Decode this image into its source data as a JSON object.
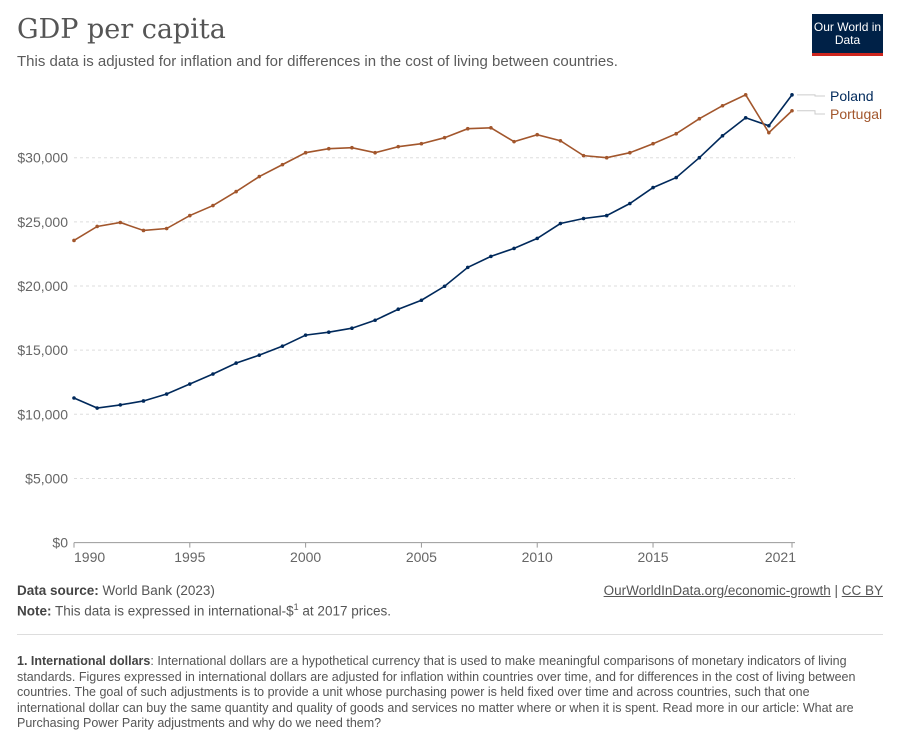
{
  "header": {
    "title": "GDP per capita",
    "subtitle": "This data is adjusted for inflation and for differences in the cost of living between countries.",
    "logo_text": "Our World in Data"
  },
  "chart_data": {
    "type": "line",
    "title": "GDP per capita",
    "x": [
      1990,
      1991,
      1992,
      1993,
      1994,
      1995,
      1996,
      1997,
      1998,
      1999,
      2000,
      2001,
      2002,
      2003,
      2004,
      2005,
      2006,
      2007,
      2008,
      2009,
      2010,
      2011,
      2012,
      2013,
      2014,
      2015,
      2016,
      2017,
      2018,
      2019,
      2020,
      2021
    ],
    "series": [
      {
        "name": "Poland",
        "color": "#00295b",
        "values": [
          11270,
          10490,
          10730,
          11040,
          11580,
          12360,
          13140,
          13990,
          14610,
          15310,
          16170,
          16400,
          16710,
          17330,
          18190,
          18890,
          19980,
          21450,
          22310,
          22930,
          23710,
          24870,
          25260,
          25490,
          26430,
          27670,
          28450,
          30000,
          31710,
          33110,
          32490,
          34900
        ]
      },
      {
        "name": "Portugal",
        "color": "#a2562c",
        "values": [
          23550,
          24640,
          24950,
          24330,
          24480,
          25490,
          26270,
          27360,
          28530,
          29460,
          30390,
          30700,
          30780,
          30390,
          30860,
          31090,
          31560,
          32260,
          32330,
          31250,
          31790,
          31320,
          30160,
          30000,
          30390,
          31090,
          31870,
          33040,
          34050,
          34900,
          31950,
          33660
        ]
      }
    ],
    "ylim": [
      0,
      35000
    ],
    "y_ticks": [
      {
        "v": 0,
        "label": "$0"
      },
      {
        "v": 5000,
        "label": "$5,000"
      },
      {
        "v": 10000,
        "label": "$10,000"
      },
      {
        "v": 15000,
        "label": "$15,000"
      },
      {
        "v": 20000,
        "label": "$20,000"
      },
      {
        "v": 25000,
        "label": "$25,000"
      },
      {
        "v": 30000,
        "label": "$30,000"
      }
    ],
    "x_ticks": [
      {
        "v": 1990,
        "label": "1990"
      },
      {
        "v": 1995,
        "label": "1995"
      },
      {
        "v": 2000,
        "label": "2000"
      },
      {
        "v": 2005,
        "label": "2005"
      },
      {
        "v": 2010,
        "label": "2010"
      },
      {
        "v": 2015,
        "label": "2015"
      },
      {
        "v": 2021,
        "label": "2021"
      }
    ],
    "grid": true,
    "legend": "right, inline labels"
  },
  "footer": {
    "source_label": "Data source:",
    "source": "World Bank (2023)",
    "note_label": "Note:",
    "note_pre": "This data is expressed in international-$",
    "note_sup": "1",
    "note_post": " at 2017 prices.",
    "link": "OurWorldInData.org/economic-growth",
    "sep": " | ",
    "license": "CC BY",
    "footnote_label": "1. International dollars",
    "footnote_text": ": International dollars are a hypothetical currency that is used to make meaningful comparisons of monetary indicators of living standards. Figures expressed in international dollars are adjusted for inflation within countries over time, and for differences in the cost of living between countries. The goal of such adjustments is to provide a unit whose purchasing power is held fixed over time and across countries, such that one international dollar can buy the same quantity and quality of goods and services no matter where or when it is spent. Read more in our article: What are Purchasing Power Parity adjustments and why do we need them?"
  }
}
